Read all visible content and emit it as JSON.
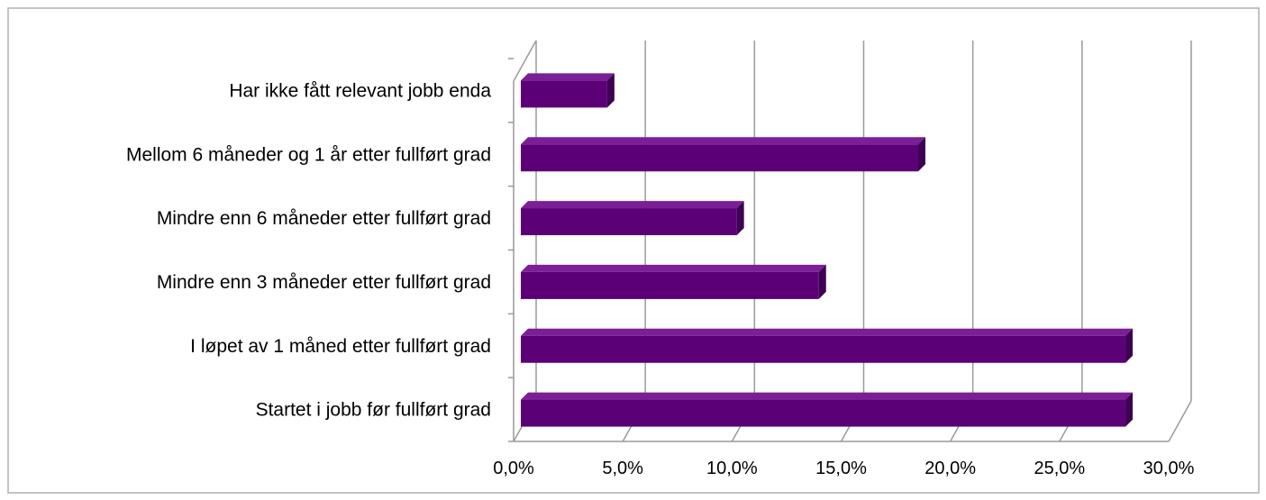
{
  "chart_data": {
    "type": "bar",
    "orientation": "horizontal",
    "style": "3d",
    "title": "",
    "xlabel": "",
    "ylabel": "",
    "categories": [
      "Startet i jobb før fullført grad",
      "I løpet av 1 måned etter fullført grad",
      "Mindre enn 3 måneder etter fullført grad",
      "Mindre enn 6 måneder etter fullført grad",
      "Mellom 6 måneder og 1 år etter fullført grad",
      "Har ikke fått relevant jobb enda"
    ],
    "values": [
      0.28,
      0.28,
      0.138,
      0.1,
      0.184,
      0.04
    ],
    "xlim": [
      0,
      0.3
    ],
    "x_ticks": [
      0,
      0.05,
      0.1,
      0.15,
      0.2,
      0.25,
      0.3
    ],
    "x_tick_labels": [
      "0,0%",
      "5,0%",
      "10,0%",
      "15,0%",
      "20,0%",
      "25,0%",
      "30,0%"
    ],
    "grid": "vertical",
    "legend": "none",
    "colors": {
      "bar_front": "#5c0077",
      "bar_top": "#7a1f96",
      "bar_side": "#3e0052",
      "grid": "#9a9a9a",
      "frame": "#b0b0b0"
    }
  }
}
